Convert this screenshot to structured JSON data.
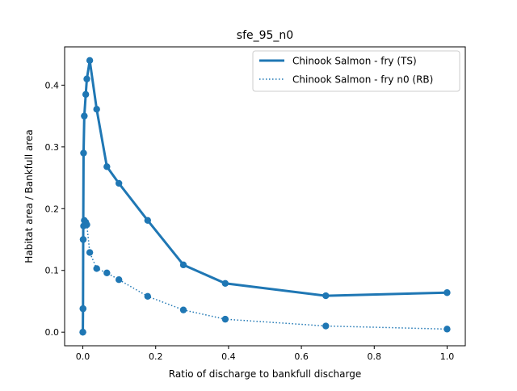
{
  "chart_data": {
    "type": "line",
    "title": "sfe_95_n0",
    "xlabel": "Ratio of discharge to bankfull discharge",
    "ylabel": "Habitat area / Bankfull area",
    "xlim": [
      -0.05,
      1.05
    ],
    "ylim": [
      -0.022,
      0.462
    ],
    "xticks": [
      0.0,
      0.2,
      0.4,
      0.6,
      0.8,
      1.0
    ],
    "yticks": [
      0.0,
      0.1,
      0.2,
      0.3,
      0.4
    ],
    "grid": false,
    "legend_position": "top-right",
    "colors": {
      "series": "#1f77b4",
      "axes": "#000000"
    },
    "series": [
      {
        "name": "Chinook Salmon - fry (TS)",
        "style": "solid",
        "x": [
          0.0,
          0.0005,
          0.001,
          0.002,
          0.004,
          0.008,
          0.011,
          0.019,
          0.038,
          0.066,
          0.099,
          0.178,
          0.276,
          0.391,
          0.667,
          1.0
        ],
        "y": [
          0.0,
          0.038,
          0.15,
          0.29,
          0.35,
          0.385,
          0.41,
          0.44,
          0.361,
          0.268,
          0.241,
          0.181,
          0.109,
          0.079,
          0.059,
          0.064
        ]
      },
      {
        "name": "Chinook Salmon - fry n0 (RB)",
        "style": "dotted",
        "x": [
          0.0,
          0.0005,
          0.001,
          0.002,
          0.004,
          0.008,
          0.011,
          0.019,
          0.038,
          0.066,
          0.099,
          0.178,
          0.276,
          0.391,
          0.667,
          1.0
        ],
        "y": [
          0.0,
          0.038,
          0.15,
          0.172,
          0.181,
          0.178,
          0.174,
          0.129,
          0.103,
          0.096,
          0.085,
          0.058,
          0.036,
          0.021,
          0.01,
          0.005
        ]
      }
    ]
  }
}
